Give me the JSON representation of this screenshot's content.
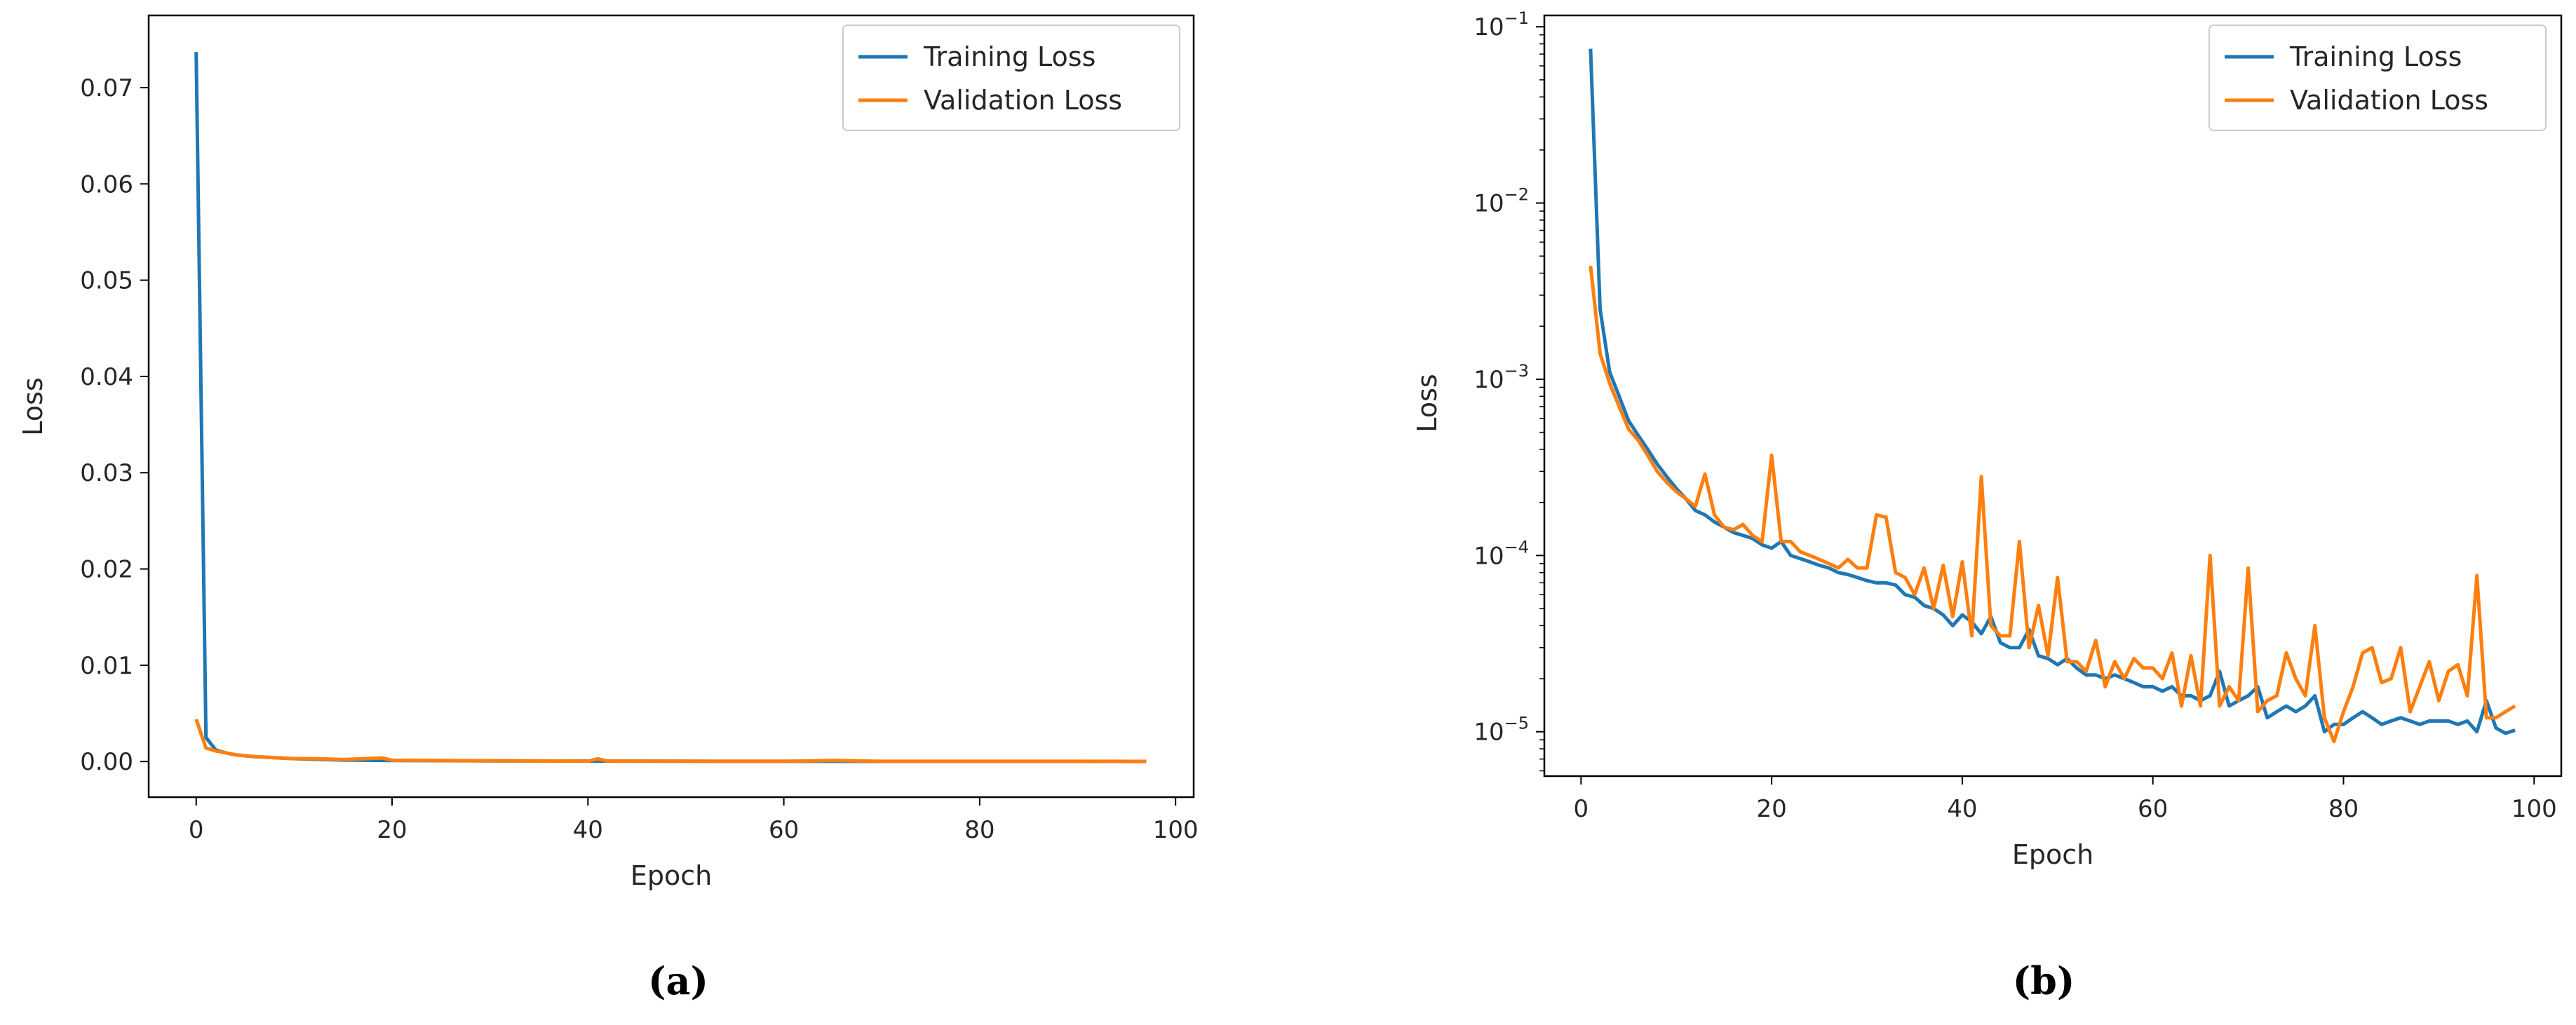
{
  "panel_labels": [
    "(a)",
    "(b)"
  ],
  "colors": {
    "training": "#1f77b4",
    "validation": "#ff7f0e"
  },
  "chart_data": [
    {
      "type": "line",
      "xlabel": "Epoch",
      "ylabel": "Loss",
      "xlim": [
        -4.85,
        101.85
      ],
      "ylim": [
        -0.0037,
        0.0775
      ],
      "x_ticks": [
        0,
        20,
        40,
        60,
        80,
        100
      ],
      "y_ticks": [
        0.0,
        0.01,
        0.02,
        0.03,
        0.04,
        0.05,
        0.06,
        0.07
      ],
      "y_tick_labels": [
        "0.00",
        "0.01",
        "0.02",
        "0.03",
        "0.04",
        "0.05",
        "0.06",
        "0.07"
      ],
      "yscale": "linear",
      "grid": false,
      "legend": "top-right",
      "series": [
        {
          "name": "Training Loss",
          "x": [
            0,
            1,
            2,
            3,
            4,
            5,
            6,
            8,
            10,
            15,
            20,
            30,
            40,
            50,
            60,
            70,
            80,
            90,
            97
          ],
          "values": [
            0.0737,
            0.0025,
            0.0012,
            0.0009,
            0.0007,
            0.0006,
            0.0005,
            0.0004,
            0.0003,
            0.00015,
            0.0001,
            7e-05,
            5e-05,
            3e-05,
            2e-05,
            1.6e-05,
            1.4e-05,
            1.2e-05,
            1e-05
          ]
        },
        {
          "name": "Validation Loss",
          "x": [
            0,
            1,
            2,
            3,
            4,
            5,
            6,
            8,
            10,
            12,
            15,
            19,
            20,
            25,
            30,
            35,
            40,
            41,
            42,
            50,
            60,
            65,
            70,
            80,
            90,
            97
          ],
          "values": [
            0.0044,
            0.0014,
            0.0011,
            0.0009,
            0.0007,
            0.0006,
            0.0005,
            0.0004,
            0.0003,
            0.0003,
            0.0002,
            0.00037,
            0.00012,
            0.0001,
            8e-05,
            6e-05,
            3e-05,
            0.00028,
            4e-05,
            3e-05,
            2e-05,
            0.0001,
            2e-05,
            2e-05,
            2e-05,
            1.4e-05
          ]
        }
      ]
    },
    {
      "type": "line",
      "xlabel": "Epoch",
      "ylabel": "Loss",
      "xlim": [
        -3.85,
        102.85
      ],
      "ylim": [
        5.6e-06,
        0.116
      ],
      "x_ticks": [
        0,
        20,
        40,
        60,
        80,
        100
      ],
      "y_ticks": [
        1e-05,
        0.0001,
        0.001,
        0.01,
        0.1
      ],
      "y_tick_exponents": [
        "−5",
        "−4",
        "−3",
        "−2",
        "−1"
      ],
      "yscale": "log",
      "grid": false,
      "legend": "top-right",
      "series": [
        {
          "name": "Training Loss",
          "x": [
            1,
            2,
            3,
            4,
            5,
            6,
            7,
            8,
            9,
            10,
            11,
            12,
            13,
            14,
            15,
            16,
            17,
            18,
            19,
            20,
            21,
            22,
            23,
            24,
            25,
            26,
            27,
            28,
            29,
            30,
            31,
            32,
            33,
            34,
            35,
            36,
            37,
            38,
            39,
            40,
            41,
            42,
            43,
            44,
            45,
            46,
            47,
            48,
            49,
            50,
            51,
            52,
            53,
            54,
            55,
            56,
            57,
            58,
            59,
            60,
            61,
            62,
            63,
            64,
            65,
            66,
            67,
            68,
            69,
            70,
            71,
            72,
            73,
            74,
            75,
            76,
            77,
            78,
            79,
            80,
            81,
            82,
            83,
            84,
            85,
            86,
            87,
            88,
            89,
            90,
            91,
            92,
            93,
            94,
            95,
            96,
            97,
            98
          ],
          "values": [
            0.075,
            0.0025,
            0.0011,
            0.0008,
            0.00058,
            0.00048,
            0.0004,
            0.00033,
            0.00028,
            0.00024,
            0.00021,
            0.00018,
            0.00017,
            0.000155,
            0.000145,
            0.000135,
            0.00013,
            0.000125,
            0.000115,
            0.00011,
            0.00012,
            0.0001,
            9.6e-05,
            9.2e-05,
            8.8e-05,
            8.5e-05,
            8e-05,
            7.8e-05,
            7.5e-05,
            7.2e-05,
            7e-05,
            7e-05,
            6.8e-05,
            6e-05,
            5.8e-05,
            5.2e-05,
            5e-05,
            4.6e-05,
            4e-05,
            4.6e-05,
            4.2e-05,
            3.6e-05,
            4.5e-05,
            3.2e-05,
            3e-05,
            3e-05,
            3.8e-05,
            2.7e-05,
            2.6e-05,
            2.4e-05,
            2.6e-05,
            2.3e-05,
            2.1e-05,
            2.1e-05,
            2e-05,
            2.1e-05,
            2e-05,
            1.9e-05,
            1.8e-05,
            1.8e-05,
            1.7e-05,
            1.8e-05,
            1.6e-05,
            1.6e-05,
            1.5e-05,
            1.6e-05,
            2.2e-05,
            1.4e-05,
            1.5e-05,
            1.6e-05,
            1.8e-05,
            1.2e-05,
            1.3e-05,
            1.4e-05,
            1.3e-05,
            1.4e-05,
            1.6e-05,
            1e-05,
            1.1e-05,
            1.1e-05,
            1.2e-05,
            1.3e-05,
            1.2e-05,
            1.1e-05,
            1.15e-05,
            1.2e-05,
            1.15e-05,
            1.1e-05,
            1.15e-05,
            1.15e-05,
            1.15e-05,
            1.1e-05,
            1.15e-05,
            1e-05,
            1.5e-05,
            1.05e-05,
            9.8e-06,
            1.02e-05
          ]
        },
        {
          "name": "Validation Loss",
          "x": [
            1,
            2,
            3,
            4,
            5,
            6,
            7,
            8,
            9,
            10,
            11,
            12,
            13,
            14,
            15,
            16,
            17,
            18,
            19,
            20,
            21,
            22,
            23,
            24,
            25,
            26,
            27,
            28,
            29,
            30,
            31,
            32,
            33,
            34,
            35,
            36,
            37,
            38,
            39,
            40,
            41,
            42,
            43,
            44,
            45,
            46,
            47,
            48,
            49,
            50,
            51,
            52,
            53,
            54,
            55,
            56,
            57,
            58,
            59,
            60,
            61,
            62,
            63,
            64,
            65,
            66,
            67,
            68,
            69,
            70,
            71,
            72,
            73,
            74,
            75,
            76,
            77,
            78,
            79,
            80,
            81,
            82,
            83,
            84,
            85,
            86,
            87,
            88,
            89,
            90,
            91,
            92,
            93,
            94,
            95,
            96,
            97,
            98
          ],
          "values": [
            0.0044,
            0.0014,
            0.00095,
            0.0007,
            0.00052,
            0.00045,
            0.00037,
            0.0003,
            0.00026,
            0.00023,
            0.00021,
            0.00019,
            0.00029,
            0.00017,
            0.000145,
            0.00014,
            0.00015,
            0.00013,
            0.00012,
            0.00037,
            0.00012,
            0.00012,
            0.000105,
            0.0001,
            9.5e-05,
            9e-05,
            8.5e-05,
            9.5e-05,
            8.5e-05,
            8.5e-05,
            0.00017,
            0.000165,
            8e-05,
            7.5e-05,
            6e-05,
            8.5e-05,
            5e-05,
            8.8e-05,
            4.5e-05,
            9.2e-05,
            3.5e-05,
            0.00028,
            4e-05,
            3.5e-05,
            3.5e-05,
            0.00012,
            3e-05,
            5.2e-05,
            2.7e-05,
            7.5e-05,
            2.5e-05,
            2.5e-05,
            2.2e-05,
            3.3e-05,
            1.8e-05,
            2.5e-05,
            2e-05,
            2.6e-05,
            2.3e-05,
            2.3e-05,
            2e-05,
            2.8e-05,
            1.4e-05,
            2.7e-05,
            1.4e-05,
            0.0001,
            1.4e-05,
            1.8e-05,
            1.5e-05,
            8.5e-05,
            1.3e-05,
            1.5e-05,
            1.6e-05,
            2.8e-05,
            2e-05,
            1.6e-05,
            4e-05,
            1.2e-05,
            8.8e-06,
            1.3e-05,
            1.8e-05,
            2.8e-05,
            3e-05,
            1.9e-05,
            2e-05,
            3e-05,
            1.3e-05,
            1.8e-05,
            2.5e-05,
            1.5e-05,
            2.2e-05,
            2.4e-05,
            1.6e-05,
            7.7e-05,
            1.2e-05,
            1.2e-05,
            1.3e-05,
            1.4e-05
          ]
        }
      ]
    }
  ]
}
